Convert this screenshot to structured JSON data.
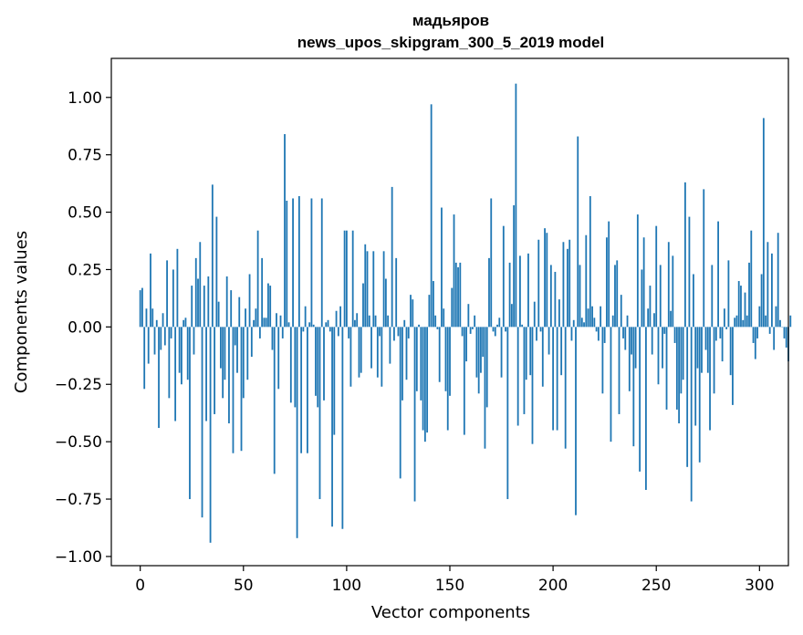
{
  "chart_data": {
    "type": "bar",
    "title": "мадьяров",
    "subtitle": "news_upos_skipgram_300_5_2019 model",
    "xlabel": "Vector components",
    "ylabel": "Components values",
    "xlim": [
      -14,
      314
    ],
    "ylim": [
      -1.04,
      1.17
    ],
    "x_ticks": [
      0,
      50,
      100,
      150,
      200,
      250,
      300
    ],
    "x_tick_labels": [
      "0",
      "50",
      "100",
      "150",
      "200",
      "250",
      "300"
    ],
    "y_ticks": [
      1.0,
      0.75,
      0.5,
      0.25,
      0.0,
      -0.25,
      -0.5,
      -0.75,
      -1.0
    ],
    "y_tick_labels": [
      "1.00",
      "0.75",
      "0.50",
      "0.25",
      "0.00",
      "−0.25",
      "−0.50",
      "−0.75",
      "−1.00"
    ],
    "grid": false,
    "bar_color": "#1f77b4",
    "values": [
      0.16,
      0.17,
      -0.27,
      0.08,
      -0.16,
      0.32,
      0.08,
      -0.12,
      0.03,
      -0.44,
      -0.1,
      0.06,
      -0.08,
      0.29,
      -0.31,
      -0.05,
      0.25,
      -0.41,
      0.34,
      -0.2,
      -0.25,
      0.03,
      0.04,
      -0.23,
      -0.75,
      0.18,
      -0.12,
      0.3,
      0.21,
      0.37,
      -0.83,
      0.18,
      -0.41,
      0.22,
      -0.94,
      0.62,
      -0.38,
      0.48,
      0.11,
      -0.18,
      -0.31,
      -0.23,
      0.22,
      -0.42,
      0.16,
      -0.55,
      -0.08,
      -0.2,
      0.13,
      -0.54,
      -0.31,
      0.08,
      -0.23,
      0.23,
      -0.13,
      0.03,
      0.08,
      0.42,
      -0.05,
      0.3,
      0.04,
      0.04,
      0.19,
      0.18,
      -0.1,
      -0.64,
      0.06,
      -0.27,
      0.05,
      -0.05,
      0.84,
      0.55,
      0.02,
      -0.33,
      0.56,
      -0.35,
      -0.92,
      0.57,
      -0.55,
      -0.02,
      0.09,
      -0.55,
      0.02,
      0.56,
      0.01,
      -0.3,
      -0.35,
      -0.75,
      0.56,
      -0.32,
      0.02,
      0.03,
      -0.02,
      -0.87,
      -0.47,
      0.07,
      -0.04,
      0.09,
      -0.88,
      0.42,
      0.42,
      -0.05,
      -0.26,
      0.42,
      0.03,
      0.06,
      -0.22,
      -0.2,
      0.19,
      0.36,
      0.33,
      0.05,
      -0.18,
      0.33,
      0.05,
      -0.22,
      -0.04,
      -0.26,
      0.33,
      0.21,
      0.05,
      -0.16,
      0.61,
      -0.06,
      0.3,
      -0.04,
      -0.66,
      -0.32,
      0.03,
      -0.23,
      -0.05,
      0.14,
      0.12,
      -0.76,
      -0.28,
      0.01,
      -0.32,
      -0.45,
      -0.5,
      -0.46,
      0.14,
      0.97,
      0.2,
      0.05,
      -0.01,
      -0.24,
      0.52,
      0.08,
      -0.28,
      -0.45,
      -0.3,
      0.17,
      0.49,
      0.28,
      0.26,
      0.28,
      -0.04,
      -0.47,
      -0.15,
      0.1,
      -0.03,
      -0.01,
      0.05,
      -0.22,
      -0.29,
      -0.2,
      -0.13,
      -0.53,
      -0.35,
      0.3,
      0.56,
      -0.02,
      -0.04,
      0.01,
      0.04,
      -0.22,
      0.44,
      -0.02,
      -0.75,
      0.28,
      0.1,
      0.53,
      1.06,
      -0.43,
      0.31,
      0.01,
      -0.38,
      -0.23,
      0.32,
      -0.21,
      -0.51,
      0.11,
      -0.06,
      0.38,
      -0.02,
      -0.26,
      0.43,
      0.41,
      -0.12,
      0.27,
      -0.45,
      0.24,
      -0.45,
      0.12,
      -0.21,
      0.37,
      -0.53,
      0.34,
      0.38,
      -0.06,
      0.03,
      -0.82,
      0.83,
      0.27,
      0.04,
      0.02,
      0.4,
      0.08,
      0.57,
      0.09,
      0.04,
      -0.02,
      -0.06,
      0.09,
      -0.29,
      -0.07,
      0.39,
      0.46,
      -0.5,
      0.05,
      0.27,
      0.29,
      -0.38,
      0.14,
      -0.05,
      -0.1,
      0.05,
      -0.28,
      -0.12,
      -0.52,
      -0.18,
      0.49,
      -0.63,
      0.25,
      0.39,
      -0.71,
      0.08,
      0.18,
      -0.12,
      0.06,
      0.44,
      -0.25,
      0.27,
      -0.18,
      -0.03,
      -0.36,
      0.37,
      0.07,
      0.31,
      -0.07,
      -0.36,
      -0.42,
      -0.29,
      -0.23,
      0.63,
      -0.61,
      0.48,
      -0.76,
      0.23,
      -0.43,
      -0.18,
      -0.59,
      -0.2,
      0.6,
      -0.1,
      -0.2,
      -0.45,
      0.27,
      -0.29,
      -0.06,
      0.46,
      -0.05,
      -0.15,
      0.08,
      -0.01,
      0.29,
      -0.21,
      -0.34,
      0.04,
      0.05,
      0.2,
      0.18,
      0.03,
      0.15,
      0.05,
      0.28,
      0.42,
      -0.07,
      -0.14,
      -0.05,
      0.09,
      0.23,
      0.91,
      0.05,
      0.37,
      -0.03,
      0.32,
      -0.1,
      0.09,
      0.41,
      0.03,
      0.0,
      -0.05,
      -0.09,
      -0.15,
      0.05
    ]
  }
}
